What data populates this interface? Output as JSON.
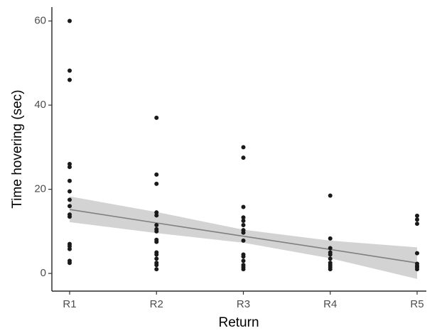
{
  "chart_data": {
    "type": "scatter",
    "xlabel": "Return",
    "ylabel": "Time hovering (sec)",
    "categories": [
      "R1",
      "R2",
      "R3",
      "R4",
      "R5"
    ],
    "values": [
      [
        60,
        48.2,
        46,
        26,
        25.3,
        22,
        19.5,
        17.5,
        16,
        14,
        13.5,
        7,
        6.5,
        5.8,
        3,
        2.5
      ],
      [
        37,
        23.5,
        21.3,
        14.5,
        13.8,
        11.5,
        10.5,
        10,
        8,
        7.5,
        5,
        4.5,
        3.5,
        2.5,
        2,
        1
      ],
      [
        30,
        27.5,
        15.8,
        13.3,
        12.5,
        11.5,
        10.3,
        9.7,
        7.8,
        4.5,
        4,
        3,
        2,
        1.5,
        1
      ],
      [
        18.5,
        8.3,
        6,
        5,
        4.5,
        3.5,
        2.5,
        2,
        1.5,
        1
      ],
      [
        13.7,
        12.8,
        11.8,
        4.8,
        2.3,
        1.8,
        1.5,
        1
      ]
    ],
    "color": "#1a1a1a",
    "fit": {
      "values": [
        15.2,
        12.0,
        8.85,
        5.7,
        2.5
      ],
      "upper": [
        18.3,
        14.6,
        10.4,
        7.8,
        6.2
      ],
      "lower": [
        12.2,
        9.6,
        7.3,
        3.6,
        -1.3
      ],
      "color": "#808080",
      "band_color": "#d3d3d3"
    },
    "ylim": [
      -4.2,
      63.3
    ],
    "yticks": [
      0,
      20,
      40,
      60
    ],
    "grid": false
  }
}
